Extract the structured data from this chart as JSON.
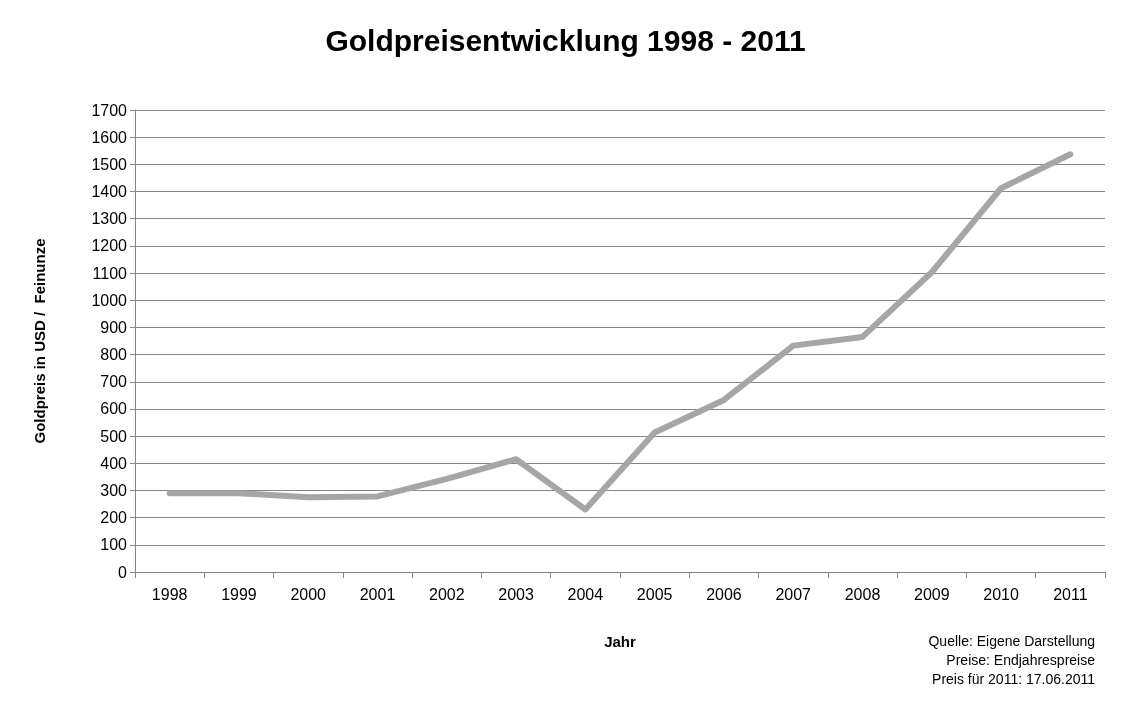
{
  "chart_data": {
    "type": "line",
    "title": "Goldpreisentwicklung 1998 - 2011",
    "xlabel": "Jahr",
    "ylabel": "Goldpreis in USD /  Feinunze",
    "categories": [
      "1998",
      "1999",
      "2000",
      "2001",
      "2002",
      "2003",
      "2004",
      "2005",
      "2006",
      "2007",
      "2008",
      "2009",
      "2010",
      "2011"
    ],
    "series": [
      {
        "color": "#a6a6a6",
        "values": [
          290,
          290,
          275,
          278,
          343,
          415,
          230,
          513,
          633,
          833,
          865,
          1103,
          1412,
          1537
        ]
      }
    ],
    "ylim": [
      0,
      1700
    ],
    "yticks": [
      0,
      100,
      200,
      300,
      400,
      500,
      600,
      700,
      800,
      900,
      1000,
      1100,
      1200,
      1300,
      1400,
      1500,
      1600,
      1700
    ],
    "grid": "y",
    "marker": "none",
    "line_style": "solid",
    "annotations": [
      "Quelle: Eigene Darstellung",
      "Preise: Endjahrespreise",
      "Preis für 2011: 17.06.2011"
    ]
  }
}
